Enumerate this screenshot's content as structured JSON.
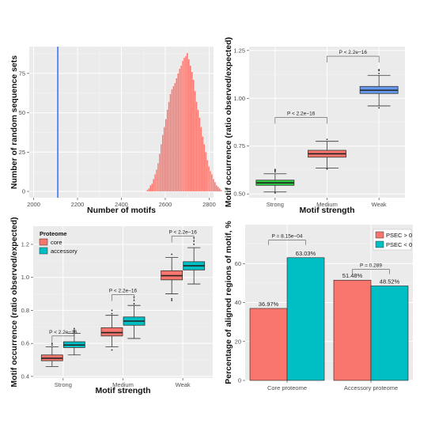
{
  "colors": {
    "panel_bg": "#ebebeb",
    "grid_major": "#ffffff",
    "grid_minor": "#f4f4f4",
    "core": "#f8766d",
    "accessory": "#00bfc4",
    "strong": "#2ecc40",
    "medium": "#f8766d",
    "weak": "#6699ee",
    "observed_line": "#5b8def",
    "hist_bar": "#f8766d"
  },
  "chart_data": [
    {
      "id": "A",
      "type": "bar",
      "xlabel": "Number of motifs",
      "ylabel": "Number of random sequence sets",
      "xlim": [
        1980,
        2820
      ],
      "ylim": [
        -4,
        92
      ],
      "xticks": [
        "2000",
        "2200",
        "2400",
        "2600",
        "2800"
      ],
      "yticks": [
        "0",
        "25",
        "50",
        "75"
      ],
      "observed_value": 2110,
      "bin_width": 7,
      "bin_start": 2515,
      "values": [
        1,
        2,
        4,
        5,
        8,
        11,
        14,
        18,
        24,
        30,
        36,
        41,
        46,
        52,
        57,
        62,
        65,
        67,
        69,
        72,
        75,
        78,
        80,
        83,
        85,
        86,
        88,
        84,
        80,
        76,
        71,
        64,
        57,
        52,
        47,
        41,
        35,
        30,
        25,
        20,
        16,
        13,
        11,
        8,
        6,
        4,
        3,
        2,
        1
      ]
    },
    {
      "id": "B",
      "type": "box",
      "xlabel": "Motif strength",
      "ylabel": "Motif occurrence (ratio observed/expected)",
      "categories": [
        "Strong",
        "Medium",
        "Weak"
      ],
      "ylim": [
        0.48,
        1.27
      ],
      "yticks": [
        "0.50",
        "0.75",
        "1.00",
        "1.25"
      ],
      "boxes": [
        {
          "min": 0.51,
          "q1": 0.545,
          "median": 0.558,
          "q3": 0.572,
          "max": 0.605,
          "outliers": [
            0.615,
            0.622,
            0.628,
            0.505
          ]
        },
        {
          "min": 0.635,
          "q1": 0.692,
          "median": 0.71,
          "q3": 0.728,
          "max": 0.775,
          "outliers": [
            0.785,
            0.63
          ]
        },
        {
          "min": 0.96,
          "q1": 1.025,
          "median": 1.042,
          "q3": 1.062,
          "max": 1.12,
          "outliers": [
            1.13,
            1.145,
            1.15,
            0.95
          ]
        }
      ],
      "comparisons": [
        {
          "from": 0,
          "to": 1,
          "label": "P < 2.2e−16",
          "y": 0.9
        },
        {
          "from": 1,
          "to": 2,
          "label": "P < 2.2e−16",
          "y": 1.22
        }
      ]
    },
    {
      "id": "C",
      "type": "box",
      "xlabel": "Motif strength",
      "ylabel": "Motif occurrence (ratio observed/expected)",
      "categories": [
        "Strong",
        "Medium",
        "Weak"
      ],
      "legend_title": "Proteome",
      "series_names": [
        "core",
        "accessory"
      ],
      "ylim": [
        0.39,
        1.31
      ],
      "yticks": [
        "0.4",
        "0.6",
        "0.8",
        "1.0",
        "1.2"
      ],
      "groups": [
        {
          "core": {
            "min": 0.46,
            "q1": 0.495,
            "median": 0.51,
            "q3": 0.53,
            "max": 0.58,
            "outliers": [
              0.59,
              0.6
            ]
          },
          "accessory": {
            "min": 0.53,
            "q1": 0.575,
            "median": 0.59,
            "q3": 0.61,
            "max": 0.66,
            "outliers": [
              0.67,
              0.68,
              0.69
            ]
          }
        },
        {
          "core": {
            "min": 0.58,
            "q1": 0.645,
            "median": 0.665,
            "q3": 0.695,
            "max": 0.77,
            "outliers": [
              0.78,
              0.8,
              0.56
            ]
          },
          "accessory": {
            "min": 0.63,
            "q1": 0.71,
            "median": 0.735,
            "q3": 0.76,
            "max": 0.83,
            "outliers": [
              0.84,
              0.86,
              0.88
            ]
          }
        },
        {
          "core": {
            "min": 0.9,
            "q1": 0.985,
            "median": 1.01,
            "q3": 1.04,
            "max": 1.12,
            "outliers": [
              1.14,
              0.87,
              0.86
            ]
          },
          "accessory": {
            "min": 0.96,
            "q1": 1.045,
            "median": 1.07,
            "q3": 1.095,
            "max": 1.18,
            "outliers": [
              1.2,
              1.22,
              1.24
            ]
          }
        }
      ],
      "comparisons": [
        {
          "group": 0,
          "label": "P < 2.2e−16",
          "y": 0.645
        },
        {
          "group": 1,
          "label": "P < 2.2e−16",
          "y": 0.895
        },
        {
          "group": 2,
          "label": "P < 2.2e−16",
          "y": 1.25
        }
      ]
    },
    {
      "id": "D",
      "type": "bar",
      "xlabel": "",
      "ylabel": "Percentage of aligned regions of motif, %",
      "categories": [
        "Core proteome",
        "Accessory proteome"
      ],
      "ylim": [
        0,
        80
      ],
      "yticks": [
        "0",
        "20",
        "40",
        "60"
      ],
      "series": [
        {
          "name": "PSEC > 0",
          "values": [
            36.97,
            51.48
          ],
          "labels": [
            "36.97%",
            "51.48%"
          ]
        },
        {
          "name": "PSEC < 0",
          "values": [
            63.03,
            48.52
          ],
          "labels": [
            "63.03%",
            "48.52%"
          ]
        }
      ],
      "comparisons": [
        {
          "group": 0,
          "label": "P = 8.15e−04",
          "y": 72
        },
        {
          "group": 1,
          "label": "P = 0.289",
          "y": 57
        }
      ]
    }
  ]
}
